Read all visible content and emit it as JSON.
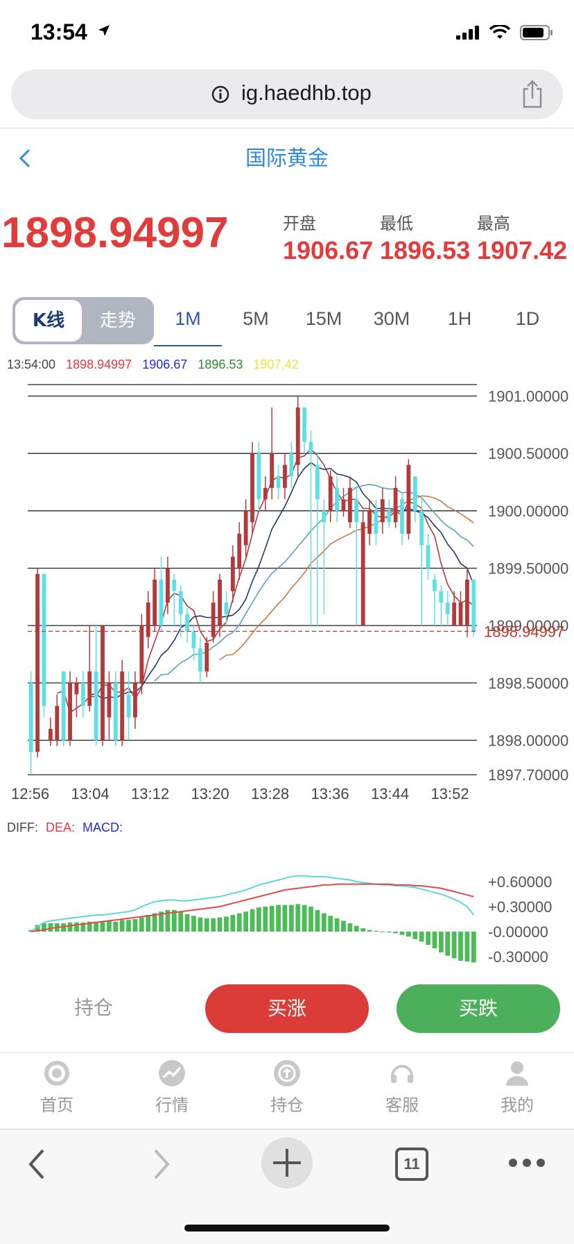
{
  "status": {
    "time": "13:54"
  },
  "browser": {
    "url": "ig.haedhb.top",
    "tabs_count": "11"
  },
  "header": {
    "title": "国际黄金"
  },
  "quote": {
    "price": "1898.94997",
    "open_label": "开盘",
    "low_label": "最低",
    "high_label": "最高",
    "open": "1906.67",
    "low": "1896.53",
    "high": "1907.42"
  },
  "tabs": {
    "kline": "K线",
    "trend": "走势",
    "periods": [
      "1M",
      "5M",
      "15M",
      "30M",
      "1H",
      "1D"
    ],
    "active": "1M"
  },
  "info": {
    "time": "13:54:00",
    "close": "1898.94997",
    "open": "1906.67",
    "low": "1896.53",
    "high": "1907.42"
  },
  "colors": {
    "up": "#b33a3a",
    "down": "#5ee0e6",
    "price_red": "#e23b3b",
    "buy_up": "#dc3c38",
    "buy_down": "#4caf5c",
    "title_blue": "#2d8ae0"
  },
  "chart_data": [
    {
      "type": "candlestick",
      "y_ticks": [
        "1901.00000",
        "1900.50000",
        "1900.00000",
        "1899.50000",
        "1899.00000",
        "1898.50000",
        "1898.00000",
        "1897.70000"
      ],
      "x_ticks": [
        "12:56",
        "13:04",
        "13:12",
        "13:20",
        "13:28",
        "13:36",
        "13:44",
        "13:52"
      ],
      "ylim": [
        1897.7,
        1901.1
      ],
      "current_price_label": "1898.94997",
      "candles": [
        [
          1898.5,
          1897.9,
          1898.6,
          1897.7
        ],
        [
          1897.9,
          1899.45,
          1899.5,
          1897.85
        ],
        [
          1899.45,
          1898.3,
          1899.45,
          1898.2
        ],
        [
          1898.0,
          1898.1,
          1898.2,
          1897.95
        ],
        [
          1898.0,
          1898.3,
          1898.4,
          1897.95
        ],
        [
          1898.6,
          1898.0,
          1898.6,
          1897.95
        ],
        [
          1898.0,
          1898.5,
          1898.6,
          1897.95
        ],
        [
          1898.4,
          1898.5,
          1898.55,
          1898.2
        ],
        [
          1898.5,
          1898.3,
          1898.6,
          1898.2
        ],
        [
          1898.3,
          1898.6,
          1899.0,
          1898.25
        ],
        [
          1898.6,
          1898.0,
          1899.0,
          1897.95
        ],
        [
          1898.0,
          1899.0,
          1899.0,
          1897.95
        ],
        [
          1898.2,
          1898.5,
          1898.6,
          1898.0
        ],
        [
          1898.5,
          1898.0,
          1898.6,
          1897.95
        ],
        [
          1898.0,
          1898.6,
          1898.7,
          1897.95
        ],
        [
          1898.4,
          1898.2,
          1898.6,
          1898.0
        ],
        [
          1898.2,
          1898.5,
          1898.6,
          1898.1
        ],
        [
          1898.5,
          1899.0,
          1899.1,
          1898.4
        ],
        [
          1898.9,
          1899.2,
          1899.3,
          1898.8
        ],
        [
          1899.0,
          1899.4,
          1899.5,
          1898.95
        ],
        [
          1899.4,
          1899.0,
          1899.6,
          1898.95
        ],
        [
          1899.2,
          1899.5,
          1899.6,
          1899.1
        ],
        [
          1899.4,
          1899.3,
          1899.45,
          1899.0
        ],
        [
          1899.3,
          1899.1,
          1899.35,
          1898.9
        ],
        [
          1899.1,
          1898.95,
          1899.15,
          1898.85
        ],
        [
          1898.95,
          1898.8,
          1899.0,
          1898.7
        ],
        [
          1898.8,
          1898.6,
          1898.9,
          1898.5
        ],
        [
          1898.6,
          1898.85,
          1898.9,
          1898.55
        ],
        [
          1898.9,
          1899.2,
          1899.3,
          1898.85
        ],
        [
          1899.0,
          1899.4,
          1899.45,
          1898.9
        ],
        [
          1899.2,
          1899.1,
          1899.3,
          1899.0
        ],
        [
          1899.3,
          1899.6,
          1899.7,
          1899.2
        ],
        [
          1899.5,
          1899.8,
          1899.9,
          1899.4
        ],
        [
          1899.7,
          1900.0,
          1900.1,
          1899.6
        ],
        [
          1899.9,
          1900.5,
          1900.6,
          1899.8
        ],
        [
          1900.5,
          1900.1,
          1900.6,
          1900.0
        ],
        [
          1900.1,
          1900.2,
          1900.3,
          1900.0
        ],
        [
          1900.2,
          1900.5,
          1900.9,
          1900.1
        ],
        [
          1900.3,
          1900.2,
          1900.4,
          1900.1
        ],
        [
          1900.2,
          1900.4,
          1900.5,
          1900.1
        ],
        [
          1900.5,
          1900.3,
          1900.6,
          1900.2
        ],
        [
          1900.4,
          1900.9,
          1901.0,
          1900.3
        ],
        [
          1900.9,
          1900.6,
          1900.9,
          1900.5
        ],
        [
          1900.6,
          1900.5,
          1900.7,
          1899.0
        ],
        [
          1900.4,
          1900.1,
          1900.5,
          1899.0
        ],
        [
          1900.0,
          1899.9,
          1900.1,
          1899.1
        ],
        [
          1900.0,
          1900.3,
          1900.35,
          1899.9
        ],
        [
          1900.2,
          1900.0,
          1900.3,
          1899.9
        ],
        [
          1900.0,
          1900.1,
          1900.2,
          1899.95
        ],
        [
          1899.9,
          1900.2,
          1900.3,
          1899.85
        ],
        [
          1900.1,
          1899.9,
          1900.2,
          1899.0
        ],
        [
          1899.0,
          1899.9,
          1900.0,
          1899.0
        ],
        [
          1899.8,
          1900.0,
          1900.1,
          1899.7
        ],
        [
          1900.0,
          1899.8,
          1900.1,
          1899.7
        ],
        [
          1899.9,
          1900.1,
          1900.2,
          1899.8
        ],
        [
          1900.0,
          1899.9,
          1900.1,
          1899.85
        ],
        [
          1899.9,
          1900.2,
          1900.3,
          1899.85
        ],
        [
          1900.1,
          1899.8,
          1900.15,
          1899.7
        ],
        [
          1899.8,
          1900.4,
          1900.45,
          1899.75
        ],
        [
          1900.3,
          1900.0,
          1900.3,
          1899.9
        ],
        [
          1900.0,
          1899.7,
          1900.1,
          1899.0
        ],
        [
          1899.7,
          1899.5,
          1899.8,
          1899.4
        ],
        [
          1899.4,
          1899.3,
          1899.45,
          1899.0
        ],
        [
          1899.3,
          1899.2,
          1899.35,
          1899.0
        ],
        [
          1899.2,
          1899.1,
          1899.3,
          1899.0
        ],
        [
          1899.0,
          1899.2,
          1899.3,
          1899.0
        ],
        [
          1899.0,
          1899.2,
          1899.3,
          1899.0
        ],
        [
          1899.0,
          1899.4,
          1899.5,
          1898.9
        ],
        [
          1899.4,
          1898.95,
          1899.4,
          1898.9
        ]
      ]
    },
    {
      "type": "bar",
      "title": "DIFF:  DEA:  MACD:",
      "y_ticks": [
        "+0.60000",
        "+0.30000",
        "-0.00000",
        "-0.30000"
      ],
      "ylim": [
        -0.35,
        0.7
      ],
      "series": [
        {
          "name": "MACD",
          "values": [
            0.02,
            0.08,
            0.1,
            0.1,
            0.1,
            0.1,
            0.11,
            0.11,
            0.11,
            0.12,
            0.12,
            0.13,
            0.13,
            0.12,
            0.14,
            0.14,
            0.15,
            0.17,
            0.2,
            0.22,
            0.24,
            0.26,
            0.26,
            0.24,
            0.21,
            0.19,
            0.17,
            0.16,
            0.16,
            0.17,
            0.18,
            0.2,
            0.22,
            0.24,
            0.27,
            0.29,
            0.3,
            0.31,
            0.32,
            0.32,
            0.32,
            0.33,
            0.32,
            0.3,
            0.26,
            0.22,
            0.19,
            0.16,
            0.13,
            0.1,
            0.07,
            0.04,
            0.02,
            0.01,
            0.0,
            -0.01,
            -0.02,
            -0.04,
            -0.06,
            -0.09,
            -0.12,
            -0.16,
            -0.2,
            -0.25,
            -0.29,
            -0.32,
            -0.35,
            -0.36,
            -0.37
          ]
        },
        {
          "name": "DIFF",
          "values": [
            0.0,
            0.06,
            0.11,
            0.13,
            0.14,
            0.15,
            0.16,
            0.17,
            0.18,
            0.19,
            0.2,
            0.2,
            0.21,
            0.22,
            0.23,
            0.24,
            0.26,
            0.3,
            0.33,
            0.36,
            0.37,
            0.38,
            0.38,
            0.37,
            0.37,
            0.38,
            0.39,
            0.4,
            0.41,
            0.42,
            0.44,
            0.46,
            0.48,
            0.5,
            0.53,
            0.56,
            0.58,
            0.6,
            0.62,
            0.64,
            0.66,
            0.67,
            0.67,
            0.66,
            0.66,
            0.66,
            0.65,
            0.64,
            0.63,
            0.62,
            0.6,
            0.59,
            0.58,
            0.57,
            0.56,
            0.56,
            0.55,
            0.55,
            0.54,
            0.53,
            0.51,
            0.49,
            0.47,
            0.45,
            0.42,
            0.39,
            0.35,
            0.3,
            0.2
          ]
        },
        {
          "name": "DEA",
          "values": [
            0.0,
            0.01,
            0.02,
            0.04,
            0.05,
            0.06,
            0.07,
            0.08,
            0.09,
            0.1,
            0.11,
            0.12,
            0.13,
            0.14,
            0.15,
            0.16,
            0.17,
            0.18,
            0.19,
            0.2,
            0.21,
            0.22,
            0.23,
            0.24,
            0.25,
            0.26,
            0.27,
            0.28,
            0.29,
            0.3,
            0.32,
            0.34,
            0.36,
            0.38,
            0.4,
            0.42,
            0.44,
            0.46,
            0.48,
            0.5,
            0.51,
            0.52,
            0.53,
            0.54,
            0.55,
            0.56,
            0.56,
            0.57,
            0.57,
            0.57,
            0.57,
            0.57,
            0.57,
            0.57,
            0.57,
            0.57,
            0.56,
            0.56,
            0.56,
            0.55,
            0.55,
            0.54,
            0.53,
            0.52,
            0.5,
            0.48,
            0.46,
            0.44,
            0.42
          ]
        }
      ]
    }
  ],
  "macd": {
    "diff": "DIFF:",
    "dea": "DEA:",
    "macd": "MACD:"
  },
  "actions": {
    "hold": "持仓",
    "buy_up": "买涨",
    "buy_down": "买跌"
  },
  "nav": {
    "items": [
      "首页",
      "行情",
      "持仓",
      "客服",
      "我的"
    ]
  }
}
